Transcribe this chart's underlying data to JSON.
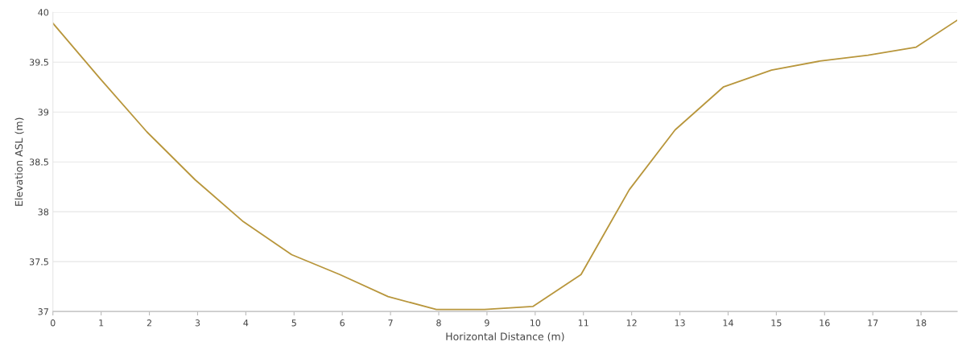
{
  "chart_data": {
    "type": "line",
    "xlabel": "Horizontal Distance (m)",
    "ylabel": "Elevation ASL (m)",
    "x": [
      0,
      0.97,
      1.95,
      2.95,
      3.95,
      4.95,
      5.95,
      6.95,
      7.95,
      8.95,
      9.95,
      10.95,
      11.95,
      12.9,
      13.9,
      14.9,
      15.9,
      16.9,
      17.9,
      18.75
    ],
    "series": [
      {
        "color": "#b8963c",
        "values": [
          39.89,
          39.34,
          38.8,
          38.32,
          37.9,
          37.57,
          37.37,
          37.15,
          37.02,
          37.02,
          37.05,
          37.37,
          38.22,
          38.82,
          39.25,
          39.42,
          39.51,
          39.57,
          39.65,
          39.92
        ]
      }
    ],
    "xlim": [
      0,
      18.75
    ],
    "xticks": [
      0,
      1,
      2,
      3,
      4,
      5,
      6,
      7,
      8,
      9,
      10,
      11,
      12,
      13,
      14,
      15,
      16,
      17,
      18
    ],
    "ylim": [
      37,
      40
    ],
    "yticks": [
      37,
      37.5,
      38,
      38.5,
      39,
      39.5,
      40
    ],
    "grid": "y",
    "legend": false,
    "marker": "none",
    "line_style": "solid"
  }
}
